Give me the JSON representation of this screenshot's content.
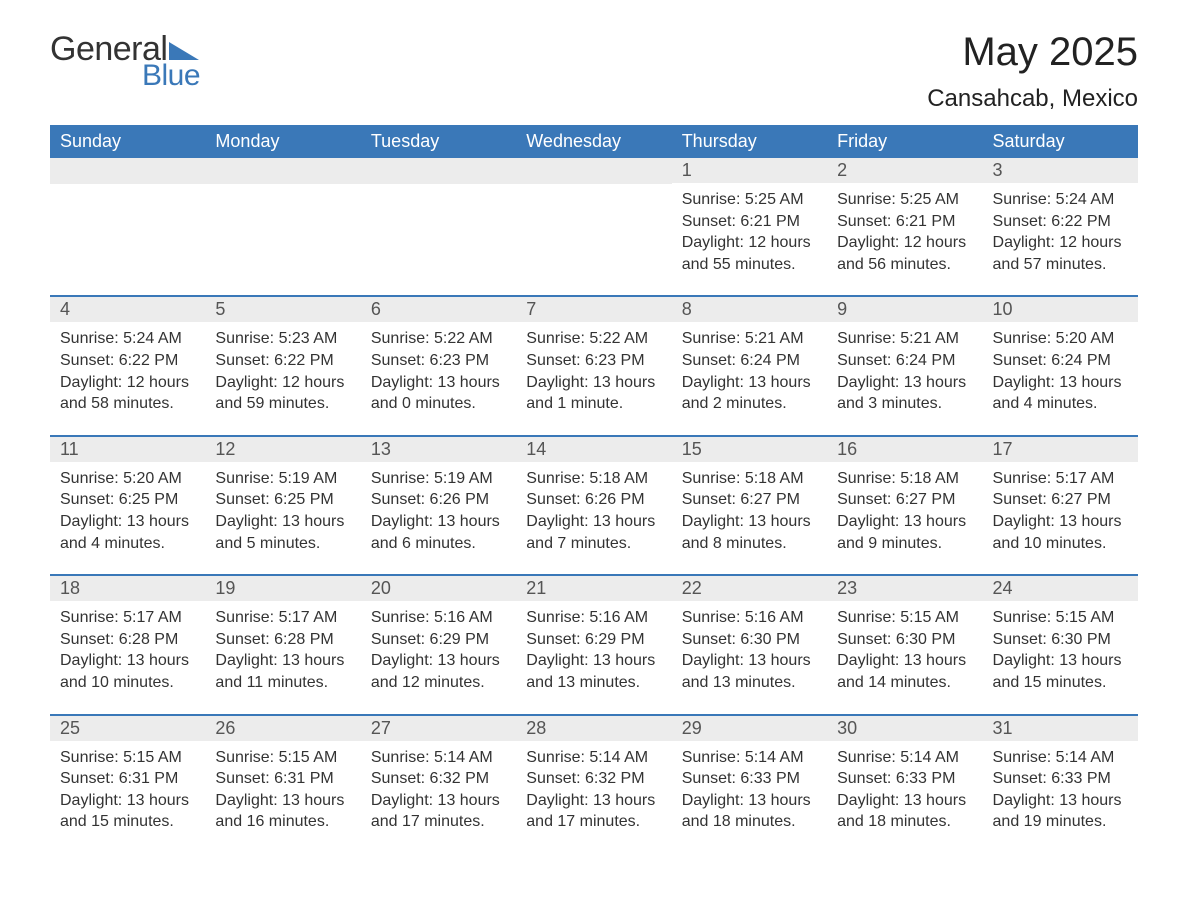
{
  "brand": {
    "text1": "General",
    "text2": "Blue",
    "triangle_color": "#3a78b8",
    "text1_color": "#333333",
    "text2_color": "#3a78b8"
  },
  "header": {
    "month_title": "May 2025",
    "location": "Cansahcab, Mexico",
    "title_color": "#222222",
    "title_fontsize_pt": 30,
    "location_fontsize_pt": 18
  },
  "styling": {
    "accent_color": "#3a78b8",
    "weekday_bg": "#3a78b8",
    "weekday_text_color": "#ffffff",
    "daynum_band_bg": "#ececec",
    "daynum_text_color": "#555555",
    "body_text_color": "#333333",
    "week_divider_color": "#3a78b8",
    "background_color": "#ffffff",
    "columns": 7,
    "cell_body_fontsize_pt": 12,
    "weekday_fontsize_pt": 14,
    "daynum_fontsize_pt": 14
  },
  "weekday_labels": [
    "Sunday",
    "Monday",
    "Tuesday",
    "Wednesday",
    "Thursday",
    "Friday",
    "Saturday"
  ],
  "weeks": [
    [
      {
        "day": "",
        "sunrise": "",
        "sunset": "",
        "daylight": ""
      },
      {
        "day": "",
        "sunrise": "",
        "sunset": "",
        "daylight": ""
      },
      {
        "day": "",
        "sunrise": "",
        "sunset": "",
        "daylight": ""
      },
      {
        "day": "",
        "sunrise": "",
        "sunset": "",
        "daylight": ""
      },
      {
        "day": "1",
        "sunrise": "Sunrise: 5:25 AM",
        "sunset": "Sunset: 6:21 PM",
        "daylight": "Daylight: 12 hours and 55 minutes."
      },
      {
        "day": "2",
        "sunrise": "Sunrise: 5:25 AM",
        "sunset": "Sunset: 6:21 PM",
        "daylight": "Daylight: 12 hours and 56 minutes."
      },
      {
        "day": "3",
        "sunrise": "Sunrise: 5:24 AM",
        "sunset": "Sunset: 6:22 PM",
        "daylight": "Daylight: 12 hours and 57 minutes."
      }
    ],
    [
      {
        "day": "4",
        "sunrise": "Sunrise: 5:24 AM",
        "sunset": "Sunset: 6:22 PM",
        "daylight": "Daylight: 12 hours and 58 minutes."
      },
      {
        "day": "5",
        "sunrise": "Sunrise: 5:23 AM",
        "sunset": "Sunset: 6:22 PM",
        "daylight": "Daylight: 12 hours and 59 minutes."
      },
      {
        "day": "6",
        "sunrise": "Sunrise: 5:22 AM",
        "sunset": "Sunset: 6:23 PM",
        "daylight": "Daylight: 13 hours and 0 minutes."
      },
      {
        "day": "7",
        "sunrise": "Sunrise: 5:22 AM",
        "sunset": "Sunset: 6:23 PM",
        "daylight": "Daylight: 13 hours and 1 minute."
      },
      {
        "day": "8",
        "sunrise": "Sunrise: 5:21 AM",
        "sunset": "Sunset: 6:24 PM",
        "daylight": "Daylight: 13 hours and 2 minutes."
      },
      {
        "day": "9",
        "sunrise": "Sunrise: 5:21 AM",
        "sunset": "Sunset: 6:24 PM",
        "daylight": "Daylight: 13 hours and 3 minutes."
      },
      {
        "day": "10",
        "sunrise": "Sunrise: 5:20 AM",
        "sunset": "Sunset: 6:24 PM",
        "daylight": "Daylight: 13 hours and 4 minutes."
      }
    ],
    [
      {
        "day": "11",
        "sunrise": "Sunrise: 5:20 AM",
        "sunset": "Sunset: 6:25 PM",
        "daylight": "Daylight: 13 hours and 4 minutes."
      },
      {
        "day": "12",
        "sunrise": "Sunrise: 5:19 AM",
        "sunset": "Sunset: 6:25 PM",
        "daylight": "Daylight: 13 hours and 5 minutes."
      },
      {
        "day": "13",
        "sunrise": "Sunrise: 5:19 AM",
        "sunset": "Sunset: 6:26 PM",
        "daylight": "Daylight: 13 hours and 6 minutes."
      },
      {
        "day": "14",
        "sunrise": "Sunrise: 5:18 AM",
        "sunset": "Sunset: 6:26 PM",
        "daylight": "Daylight: 13 hours and 7 minutes."
      },
      {
        "day": "15",
        "sunrise": "Sunrise: 5:18 AM",
        "sunset": "Sunset: 6:27 PM",
        "daylight": "Daylight: 13 hours and 8 minutes."
      },
      {
        "day": "16",
        "sunrise": "Sunrise: 5:18 AM",
        "sunset": "Sunset: 6:27 PM",
        "daylight": "Daylight: 13 hours and 9 minutes."
      },
      {
        "day": "17",
        "sunrise": "Sunrise: 5:17 AM",
        "sunset": "Sunset: 6:27 PM",
        "daylight": "Daylight: 13 hours and 10 minutes."
      }
    ],
    [
      {
        "day": "18",
        "sunrise": "Sunrise: 5:17 AM",
        "sunset": "Sunset: 6:28 PM",
        "daylight": "Daylight: 13 hours and 10 minutes."
      },
      {
        "day": "19",
        "sunrise": "Sunrise: 5:17 AM",
        "sunset": "Sunset: 6:28 PM",
        "daylight": "Daylight: 13 hours and 11 minutes."
      },
      {
        "day": "20",
        "sunrise": "Sunrise: 5:16 AM",
        "sunset": "Sunset: 6:29 PM",
        "daylight": "Daylight: 13 hours and 12 minutes."
      },
      {
        "day": "21",
        "sunrise": "Sunrise: 5:16 AM",
        "sunset": "Sunset: 6:29 PM",
        "daylight": "Daylight: 13 hours and 13 minutes."
      },
      {
        "day": "22",
        "sunrise": "Sunrise: 5:16 AM",
        "sunset": "Sunset: 6:30 PM",
        "daylight": "Daylight: 13 hours and 13 minutes."
      },
      {
        "day": "23",
        "sunrise": "Sunrise: 5:15 AM",
        "sunset": "Sunset: 6:30 PM",
        "daylight": "Daylight: 13 hours and 14 minutes."
      },
      {
        "day": "24",
        "sunrise": "Sunrise: 5:15 AM",
        "sunset": "Sunset: 6:30 PM",
        "daylight": "Daylight: 13 hours and 15 minutes."
      }
    ],
    [
      {
        "day": "25",
        "sunrise": "Sunrise: 5:15 AM",
        "sunset": "Sunset: 6:31 PM",
        "daylight": "Daylight: 13 hours and 15 minutes."
      },
      {
        "day": "26",
        "sunrise": "Sunrise: 5:15 AM",
        "sunset": "Sunset: 6:31 PM",
        "daylight": "Daylight: 13 hours and 16 minutes."
      },
      {
        "day": "27",
        "sunrise": "Sunrise: 5:14 AM",
        "sunset": "Sunset: 6:32 PM",
        "daylight": "Daylight: 13 hours and 17 minutes."
      },
      {
        "day": "28",
        "sunrise": "Sunrise: 5:14 AM",
        "sunset": "Sunset: 6:32 PM",
        "daylight": "Daylight: 13 hours and 17 minutes."
      },
      {
        "day": "29",
        "sunrise": "Sunrise: 5:14 AM",
        "sunset": "Sunset: 6:33 PM",
        "daylight": "Daylight: 13 hours and 18 minutes."
      },
      {
        "day": "30",
        "sunrise": "Sunrise: 5:14 AM",
        "sunset": "Sunset: 6:33 PM",
        "daylight": "Daylight: 13 hours and 18 minutes."
      },
      {
        "day": "31",
        "sunrise": "Sunrise: 5:14 AM",
        "sunset": "Sunset: 6:33 PM",
        "daylight": "Daylight: 13 hours and 19 minutes."
      }
    ]
  ]
}
